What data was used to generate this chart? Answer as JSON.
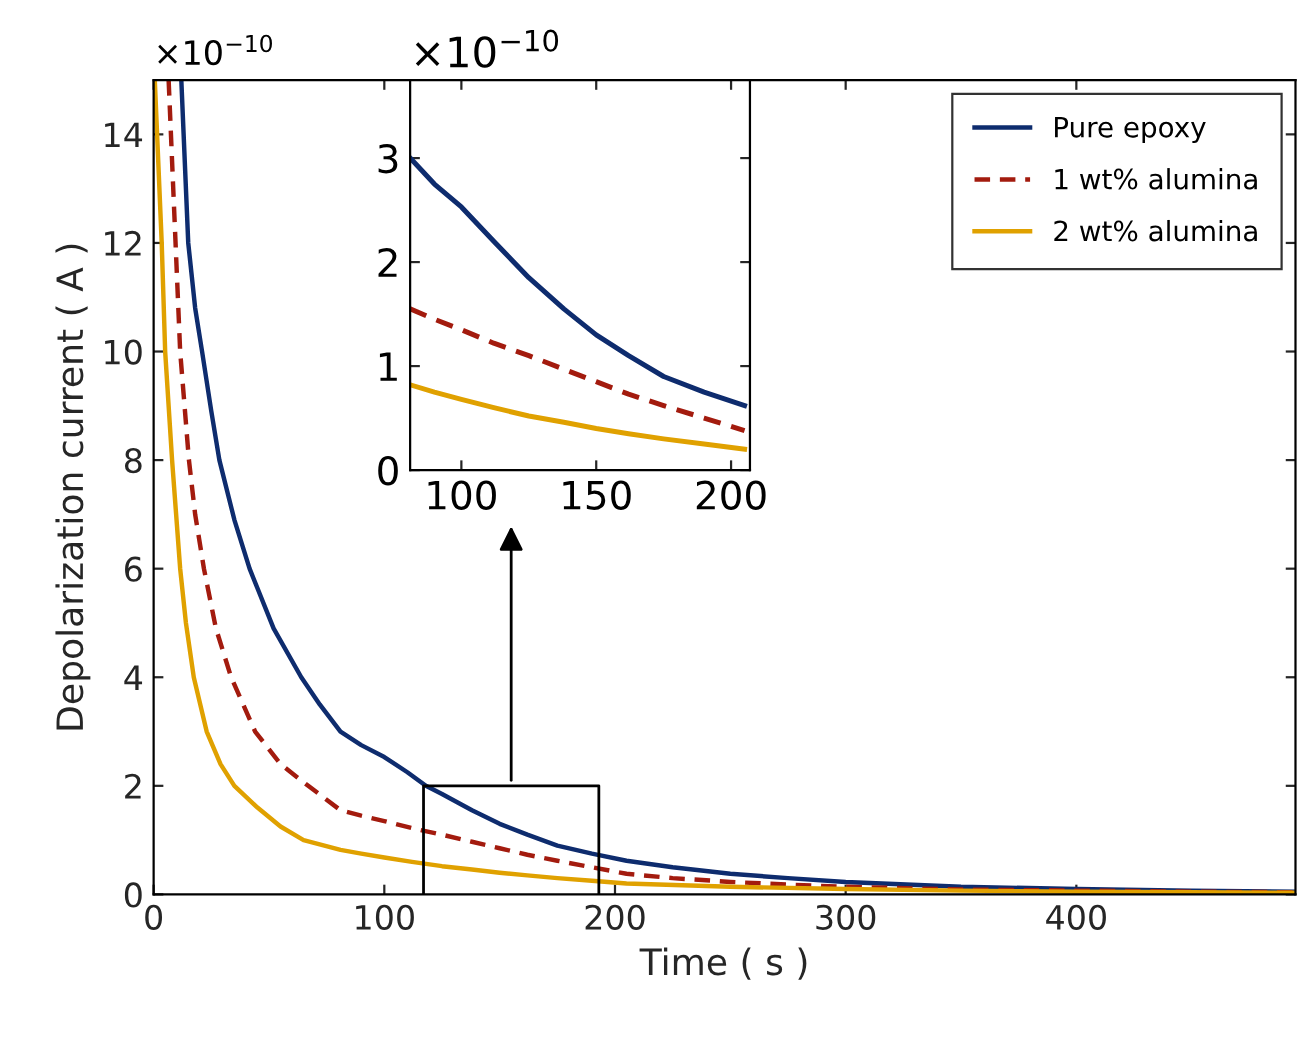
{
  "chart_data": [
    {
      "type": "line",
      "xlabel": "Time ( s )",
      "ylabel": "Depolarization current ( A )",
      "annotations": [
        "×10$^{−10}$"
      ],
      "xlim": [
        0,
        495
      ],
      "ylim": [
        0,
        15
      ],
      "xticks": [
        0,
        100,
        200,
        300,
        400
      ],
      "yticks": [
        0,
        2,
        4,
        6,
        8,
        10,
        12,
        14
      ],
      "grid": false,
      "legend": "top right",
      "marker": "none",
      "series": [
        {
          "name": "Pure epoxy",
          "color": "#0e2c6e",
          "line_style": "solid",
          "x": [
            12,
            15,
            18,
            21,
            25,
            28.5,
            35,
            41.6,
            52,
            64,
            72,
            81,
            90,
            100,
            110,
            118,
            125,
            138,
            150,
            162,
            175,
            190,
            205,
            225,
            250,
            275,
            300,
            350,
            400,
            450,
            495
          ],
          "values": [
            15,
            12,
            10.8,
            10,
            8.9,
            8,
            6.9,
            6,
            4.9,
            4,
            3.5,
            3.0,
            2.75,
            2.53,
            2.25,
            2,
            1.85,
            1.55,
            1.3,
            1.1,
            0.9,
            0.75,
            0.62,
            0.5,
            0.38,
            0.3,
            0.23,
            0.14,
            0.1,
            0.07,
            0.05
          ]
        },
        {
          "name": "1 wt% alumina",
          "color": "#a31b0e",
          "line_style": "dashed",
          "x": [
            6.5,
            9.5,
            11.5,
            15.3,
            18,
            21.8,
            27,
            33.6,
            44,
            55,
            67,
            81,
            90,
            100,
            112,
            125,
            138,
            150,
            162,
            175,
            190,
            205,
            225,
            250,
            275,
            300,
            350,
            400,
            450,
            495
          ],
          "values": [
            15,
            12,
            10,
            8,
            7,
            6,
            4.9,
            4,
            3,
            2.4,
            2,
            1.55,
            1.45,
            1.35,
            1.22,
            1.1,
            0.97,
            0.85,
            0.73,
            0.62,
            0.5,
            0.38,
            0.3,
            0.23,
            0.18,
            0.14,
            0.09,
            0.07,
            0.05,
            0.04
          ]
        },
        {
          "name": "2 wt% alumina",
          "color": "#e0a100",
          "line_style": "solid",
          "x": [
            0.5,
            3.5,
            5,
            8,
            11.5,
            14,
            17.4,
            23,
            29,
            35,
            45,
            55,
            65,
            81,
            90,
            100,
            112,
            125,
            138,
            150,
            162,
            175,
            190,
            205,
            250,
            300,
            350,
            400,
            450,
            495
          ],
          "values": [
            15,
            12,
            10,
            8,
            6,
            5,
            4,
            3,
            2.4,
            2,
            1.6,
            1.25,
            1.0,
            0.82,
            0.75,
            0.68,
            0.6,
            0.52,
            0.46,
            0.4,
            0.35,
            0.3,
            0.25,
            0.2,
            0.14,
            0.1,
            0.07,
            0.05,
            0.04,
            0.03
          ]
        }
      ]
    },
    {
      "type": "line",
      "annotations": [
        "×10$^{−10}$"
      ],
      "xlim": [
        81,
        207
      ],
      "ylim": [
        0,
        3.75
      ],
      "xticks": [
        100,
        150,
        200
      ],
      "yticks": [
        0,
        1,
        2,
        3
      ],
      "grid": false,
      "marker": "none",
      "series": [
        {
          "color": "#0e2c6e",
          "line_style": "solid",
          "x": [
            81,
            90,
            100,
            112,
            125,
            138,
            150,
            162,
            175,
            190,
            205
          ],
          "values": [
            3.0,
            2.75,
            2.53,
            2.2,
            1.85,
            1.55,
            1.3,
            1.1,
            0.9,
            0.75,
            0.62
          ]
        },
        {
          "color": "#a31b0e",
          "line_style": "dashed",
          "x": [
            81,
            90,
            100,
            112,
            125,
            138,
            150,
            162,
            175,
            190,
            205
          ],
          "values": [
            1.55,
            1.45,
            1.35,
            1.22,
            1.1,
            0.97,
            0.85,
            0.73,
            0.62,
            0.5,
            0.38
          ]
        },
        {
          "color": "#e0a100",
          "line_style": "solid",
          "x": [
            81,
            90,
            100,
            112,
            125,
            138,
            150,
            162,
            175,
            190,
            205
          ],
          "values": [
            0.82,
            0.75,
            0.68,
            0.6,
            0.52,
            0.46,
            0.4,
            0.35,
            0.3,
            0.25,
            0.2
          ]
        }
      ]
    }
  ]
}
